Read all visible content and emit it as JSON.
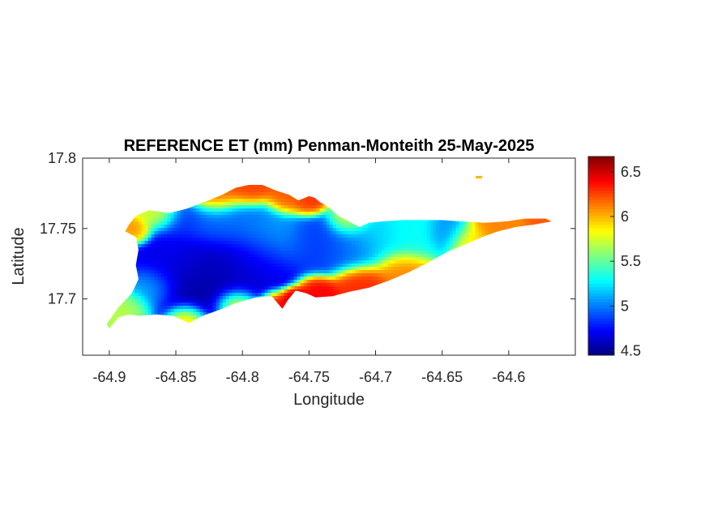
{
  "chart_data": {
    "type": "heatmap",
    "title": "REFERENCE ET (mm) Penman-Monteith 25-May-2025",
    "xlabel": "Longitude",
    "ylabel": "Latitude",
    "xlim": [
      -64.92,
      -64.55
    ],
    "ylim": [
      17.66,
      17.8
    ],
    "xticks": [
      -64.9,
      -64.85,
      -64.8,
      -64.75,
      -64.7,
      -64.65,
      -64.6
    ],
    "xtick_labels": [
      "-64.9",
      "-64.85",
      "-64.8",
      "-64.75",
      "-64.7",
      "-64.65",
      "-64.6"
    ],
    "yticks": [
      17.7,
      17.75,
      17.8
    ],
    "ytick_labels": [
      "17.7",
      "17.75",
      "17.8"
    ],
    "colormap": "jet",
    "clim": [
      4.45,
      6.67
    ],
    "colorbar_ticks": [
      4.5,
      5,
      5.5,
      6,
      6.5
    ],
    "colorbar_tick_labels": [
      "4.5",
      "5",
      "5.5",
      "6",
      "6.5"
    ],
    "grid": false,
    "island_outline": [
      [
        -64.9,
        17.679
      ],
      [
        -64.893,
        17.687
      ],
      [
        -64.885,
        17.689
      ],
      [
        -64.878,
        17.688
      ],
      [
        -64.865,
        17.689
      ],
      [
        -64.852,
        17.688
      ],
      [
        -64.84,
        17.683
      ],
      [
        -64.83,
        17.688
      ],
      [
        -64.818,
        17.692
      ],
      [
        -64.805,
        17.697
      ],
      [
        -64.79,
        17.701
      ],
      [
        -64.778,
        17.702
      ],
      [
        -64.77,
        17.693
      ],
      [
        -64.766,
        17.699
      ],
      [
        -64.76,
        17.706
      ],
      [
        -64.752,
        17.704
      ],
      [
        -64.745,
        17.701
      ],
      [
        -64.732,
        17.702
      ],
      [
        -64.72,
        17.705
      ],
      [
        -64.705,
        17.708
      ],
      [
        -64.69,
        17.713
      ],
      [
        -64.675,
        17.719
      ],
      [
        -64.66,
        17.726
      ],
      [
        -64.645,
        17.734
      ],
      [
        -64.632,
        17.739
      ],
      [
        -64.62,
        17.744
      ],
      [
        -64.608,
        17.748
      ],
      [
        -64.595,
        17.751
      ],
      [
        -64.58,
        17.753
      ],
      [
        -64.568,
        17.755
      ],
      [
        -64.572,
        17.757
      ],
      [
        -64.588,
        17.757
      ],
      [
        -64.602,
        17.755
      ],
      [
        -64.618,
        17.754
      ],
      [
        -64.635,
        17.755
      ],
      [
        -64.65,
        17.756
      ],
      [
        -64.665,
        17.756
      ],
      [
        -64.68,
        17.756
      ],
      [
        -64.695,
        17.755
      ],
      [
        -64.705,
        17.754
      ],
      [
        -64.712,
        17.751
      ],
      [
        -64.72,
        17.755
      ],
      [
        -64.728,
        17.759
      ],
      [
        -64.735,
        17.765
      ],
      [
        -64.742,
        17.769
      ],
      [
        -64.746,
        17.772
      ],
      [
        -64.75,
        17.773
      ],
      [
        -64.755,
        17.771
      ],
      [
        -64.758,
        17.77
      ],
      [
        -64.765,
        17.774
      ],
      [
        -64.775,
        17.777
      ],
      [
        -64.785,
        17.781
      ],
      [
        -64.795,
        17.781
      ],
      [
        -64.805,
        17.779
      ],
      [
        -64.815,
        17.774
      ],
      [
        -64.828,
        17.769
      ],
      [
        -64.842,
        17.764
      ],
      [
        -64.855,
        17.761
      ],
      [
        -64.87,
        17.763
      ],
      [
        -64.88,
        17.759
      ],
      [
        -64.885,
        17.753
      ],
      [
        -64.888,
        17.748
      ],
      [
        -64.88,
        17.744
      ],
      [
        -64.878,
        17.735
      ],
      [
        -64.88,
        17.724
      ],
      [
        -64.878,
        17.714
      ],
      [
        -64.883,
        17.704
      ],
      [
        -64.893,
        17.694
      ],
      [
        -64.902,
        17.682
      ]
    ],
    "et_field": [
      {
        "lon": -64.835,
        "lat": 17.712,
        "value": 4.5,
        "spread": 0.022
      },
      {
        "lon": -64.812,
        "lat": 17.722,
        "value": 4.6,
        "spread": 0.02
      },
      {
        "lon": -64.79,
        "lat": 17.726,
        "value": 4.7,
        "spread": 0.016
      },
      {
        "lon": -64.85,
        "lat": 17.728,
        "value": 4.75,
        "spread": 0.016
      },
      {
        "lon": -64.845,
        "lat": 17.754,
        "value": 4.85,
        "spread": 0.01
      },
      {
        "lon": -64.822,
        "lat": 17.752,
        "value": 5.0,
        "spread": 0.012
      },
      {
        "lon": -64.8,
        "lat": 17.75,
        "value": 5.0,
        "spread": 0.012
      },
      {
        "lon": -64.778,
        "lat": 17.743,
        "value": 5.1,
        "spread": 0.014
      },
      {
        "lon": -64.745,
        "lat": 17.74,
        "value": 4.85,
        "spread": 0.013
      },
      {
        "lon": -64.72,
        "lat": 17.738,
        "value": 4.95,
        "spread": 0.012
      },
      {
        "lon": -64.7,
        "lat": 17.742,
        "value": 5.2,
        "spread": 0.012
      },
      {
        "lon": -64.675,
        "lat": 17.744,
        "value": 5.3,
        "spread": 0.012
      },
      {
        "lon": -64.645,
        "lat": 17.747,
        "value": 5.05,
        "spread": 0.008
      },
      {
        "lon": -64.868,
        "lat": 17.708,
        "value": 5.2,
        "spread": 0.01
      },
      {
        "lon": -64.885,
        "lat": 17.693,
        "value": 5.7,
        "spread": 0.009
      },
      {
        "lon": -64.88,
        "lat": 17.748,
        "value": 6.1,
        "spread": 0.006
      },
      {
        "lon": -64.862,
        "lat": 17.76,
        "value": 5.8,
        "spread": 0.008
      },
      {
        "lon": -64.82,
        "lat": 17.775,
        "value": 6.2,
        "spread": 0.01
      },
      {
        "lon": -64.795,
        "lat": 17.78,
        "value": 6.25,
        "spread": 0.009
      },
      {
        "lon": -64.765,
        "lat": 17.772,
        "value": 6.2,
        "spread": 0.008
      },
      {
        "lon": -64.75,
        "lat": 17.768,
        "value": 6.3,
        "spread": 0.006
      },
      {
        "lon": -64.72,
        "lat": 17.755,
        "value": 5.8,
        "spread": 0.008
      },
      {
        "lon": -64.605,
        "lat": 17.752,
        "value": 6.1,
        "spread": 0.01
      },
      {
        "lon": -64.575,
        "lat": 17.755,
        "value": 6.2,
        "spread": 0.006
      },
      {
        "lon": -64.63,
        "lat": 17.741,
        "value": 5.9,
        "spread": 0.008
      },
      {
        "lon": -64.68,
        "lat": 17.72,
        "value": 6.1,
        "spread": 0.01
      },
      {
        "lon": -64.71,
        "lat": 17.709,
        "value": 6.3,
        "spread": 0.01
      },
      {
        "lon": -64.745,
        "lat": 17.703,
        "value": 6.4,
        "spread": 0.008
      },
      {
        "lon": -64.762,
        "lat": 17.701,
        "value": 6.6,
        "spread": 0.005
      },
      {
        "lon": -64.775,
        "lat": 17.697,
        "value": 6.5,
        "spread": 0.006
      },
      {
        "lon": -64.805,
        "lat": 17.696,
        "value": 6.2,
        "spread": 0.008
      },
      {
        "lon": -64.842,
        "lat": 17.685,
        "value": 6.2,
        "spread": 0.008
      }
    ],
    "islets": [
      {
        "lon": -64.6225,
        "lat": 17.7865,
        "value": 6.0
      }
    ]
  }
}
